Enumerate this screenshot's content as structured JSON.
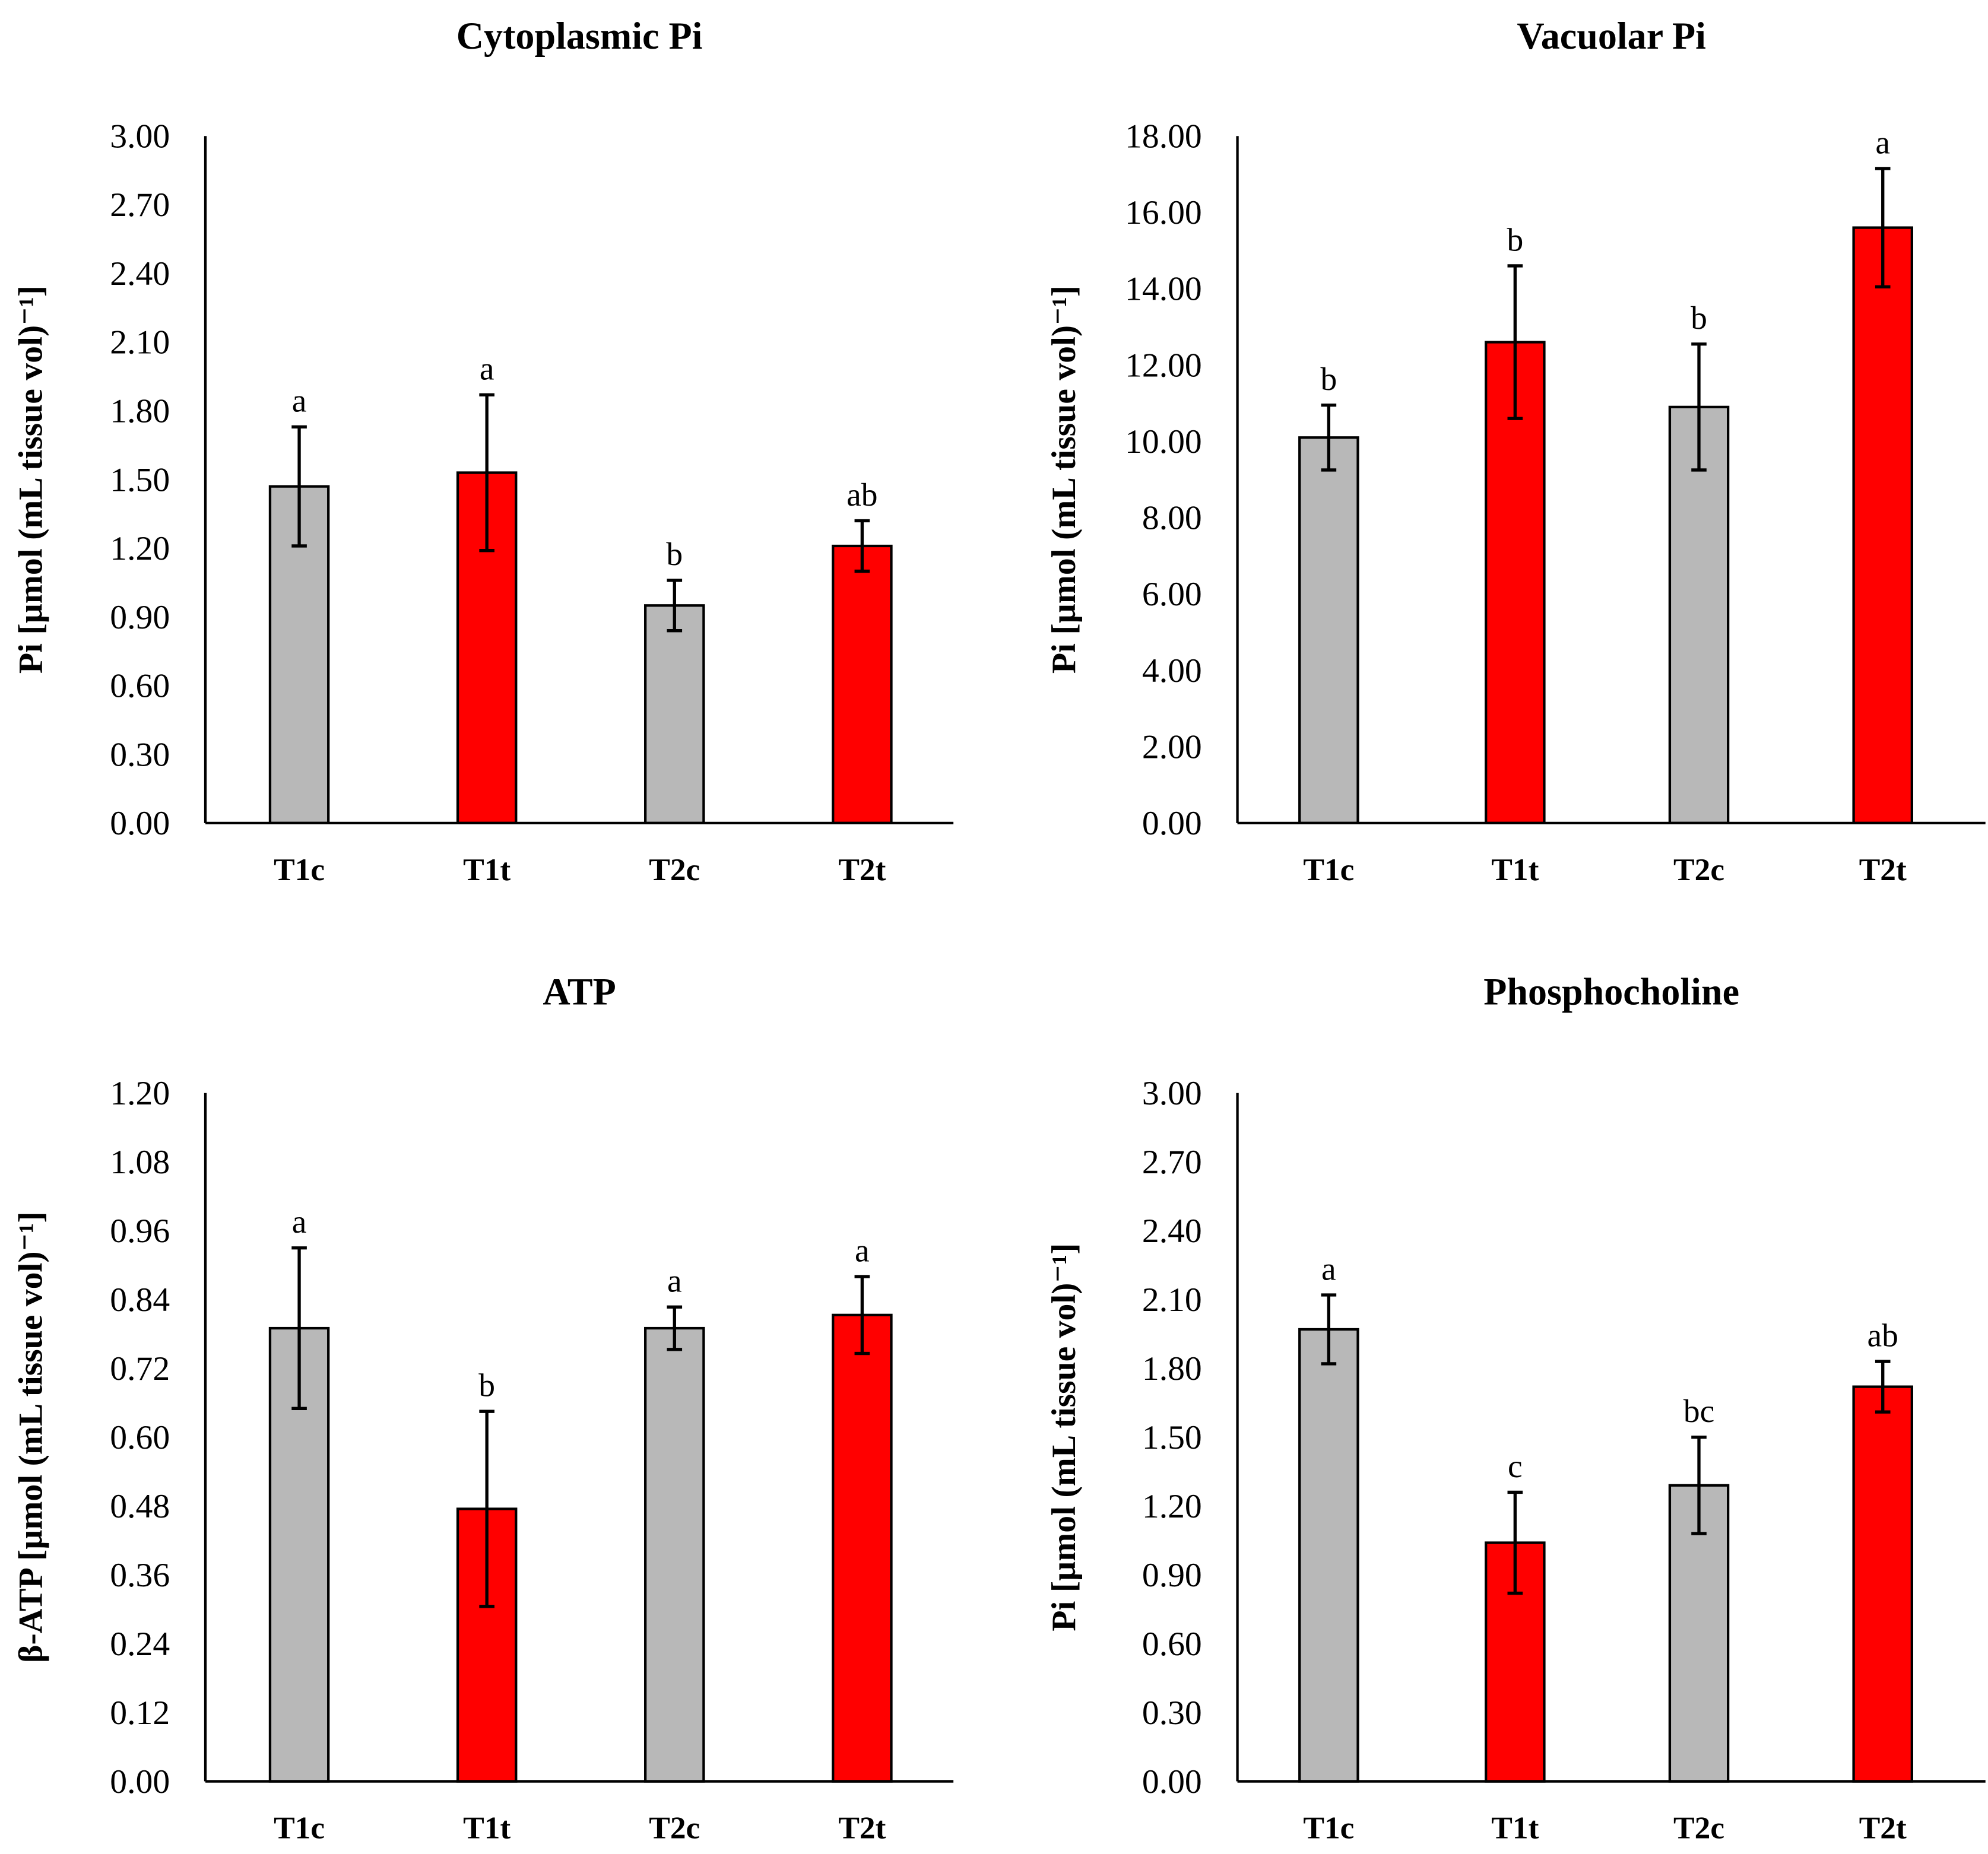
{
  "colors": {
    "control": "#b8b8b8",
    "treatment": "#ff0000",
    "axis": "#000000"
  },
  "chart_data": [
    {
      "type": "bar",
      "title": "Cytoplasmic Pi",
      "ylabel": "Pi [µmol (mL tissue vol)⁻¹]",
      "xlabel": "",
      "categories": [
        "T1c",
        "T1t",
        "T2c",
        "T2t"
      ],
      "values": [
        1.47,
        1.53,
        0.95,
        1.21
      ],
      "error": [
        0.26,
        0.34,
        0.11,
        0.11
      ],
      "significance": [
        "a",
        "a",
        "b",
        "ab"
      ],
      "ylim": [
        0,
        3.0
      ],
      "yticks": [
        "0.00",
        "0.30",
        "0.60",
        "0.90",
        "1.20",
        "1.50",
        "1.80",
        "2.10",
        "2.40",
        "2.70",
        "3.00"
      ],
      "grid": false
    },
    {
      "type": "bar",
      "title": "Vacuolar Pi",
      "ylabel": "Pi [µmol (mL tissue vol)⁻¹]",
      "xlabel": "",
      "categories": [
        "T1c",
        "T1t",
        "T2c",
        "T2t"
      ],
      "values": [
        10.1,
        12.6,
        10.9,
        15.6
      ],
      "error": [
        0.85,
        2.0,
        1.65,
        1.55
      ],
      "significance": [
        "b",
        "b",
        "b",
        "a"
      ],
      "ylim": [
        0,
        18.0
      ],
      "yticks": [
        "0.00",
        "2.00",
        "4.00",
        "6.00",
        "8.00",
        "10.00",
        "12.00",
        "14.00",
        "16.00",
        "18.00"
      ],
      "grid": false
    },
    {
      "type": "bar",
      "title": "ATP",
      "ylabel": "β-ATP  [µmol (mL tissue vol)⁻¹]",
      "xlabel": "",
      "categories": [
        "T1c",
        "T1t",
        "T2c",
        "T2t"
      ],
      "values": [
        0.79,
        0.475,
        0.79,
        0.813
      ],
      "error": [
        0.14,
        0.17,
        0.037,
        0.067
      ],
      "significance": [
        "a",
        "b",
        "a",
        "a"
      ],
      "ylim": [
        0,
        1.2
      ],
      "yticks": [
        "0.00",
        "0.12",
        "0.24",
        "0.36",
        "0.48",
        "0.60",
        "0.72",
        "0.84",
        "0.96",
        "1.08",
        "1.20"
      ],
      "grid": false
    },
    {
      "type": "bar",
      "title": "Phosphocholine",
      "ylabel": "Pi [µmol (mL tissue vol)⁻¹]",
      "xlabel": "",
      "categories": [
        "T1c",
        "T1t",
        "T2c",
        "T2t"
      ],
      "values": [
        1.97,
        1.04,
        1.29,
        1.72
      ],
      "error": [
        0.15,
        0.22,
        0.21,
        0.11
      ],
      "significance": [
        "a",
        "c",
        "bc",
        "ab"
      ],
      "ylim": [
        0,
        3.0
      ],
      "yticks": [
        "0.00",
        "0.30",
        "0.60",
        "0.90",
        "1.20",
        "1.50",
        "1.80",
        "2.10",
        "2.40",
        "2.70",
        "3.00"
      ],
      "grid": false
    }
  ]
}
